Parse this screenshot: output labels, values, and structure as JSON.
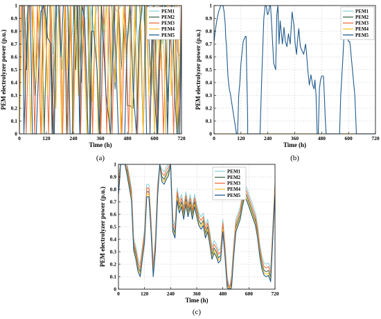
{
  "colors": {
    "PEM1": "#8fd3d6",
    "PEM2": "#41674e",
    "PEM3": "#ef6f3d",
    "PEM4": "#f5c12a",
    "PEM5": "#1f5a8c"
  },
  "chart_data": [
    {
      "id": "a",
      "type": "line",
      "panel_label": "(a)",
      "xlabel": "Time (h)",
      "ylabel": "PEM electrolyzer power (p.u.)",
      "xlim": [
        0,
        720
      ],
      "ylim": [
        0,
        1
      ],
      "xticks": [
        0,
        120,
        240,
        360,
        480,
        600,
        720
      ],
      "yticks": [
        0,
        0.1,
        0.2,
        0.3,
        0.4,
        0.5,
        0.6,
        0.7,
        0.8,
        0.9,
        1
      ],
      "grid": true,
      "legend_position": "top-right",
      "series": [
        {
          "name": "PEM1",
          "x": [
            0,
            10,
            20,
            40,
            60,
            90,
            105,
            118,
            125,
            140,
            150,
            160,
            175,
            190,
            205,
            215,
            230,
            245,
            255,
            262,
            270,
            280,
            290,
            300,
            310,
            318,
            330,
            345,
            360,
            375,
            385,
            395,
            405,
            420,
            435,
            450,
            465,
            480,
            500,
            515,
            530,
            545,
            560,
            575,
            590,
            605,
            620,
            635,
            650,
            665,
            680,
            690,
            700,
            715,
            720
          ],
          "y": [
            1,
            1,
            0.75,
            1,
            1,
            1,
            1,
            0.75,
            1,
            1,
            0.62,
            0.85,
            1,
            0.5,
            1,
            1,
            0.7,
            1,
            1,
            0.3,
            1,
            0.55,
            1,
            1,
            0.4,
            1,
            0.8,
            1,
            1,
            0.6,
            1,
            1,
            0.35,
            1,
            0.95,
            1,
            1,
            0.72,
            1,
            1,
            0.6,
            1,
            0.8,
            1,
            1,
            0.5,
            1,
            0.7,
            1,
            0.9,
            0.6,
            1,
            0.65,
            0.6,
            0.65
          ]
        },
        {
          "name": "PEM2",
          "x": [
            0,
            10,
            22,
            32,
            40,
            55,
            70,
            90,
            100,
            110,
            125,
            135,
            145,
            160,
            175,
            190,
            200,
            210,
            225,
            240,
            250,
            258,
            266,
            275,
            290,
            305,
            315,
            325,
            335,
            350,
            360,
            375,
            390,
            410,
            425,
            440,
            455,
            470,
            480,
            490,
            505,
            520,
            535,
            550,
            560,
            570,
            585,
            600,
            615,
            630,
            645,
            660,
            675,
            690,
            705,
            720
          ],
          "y": [
            1,
            1,
            1,
            0.5,
            1,
            1,
            0.3,
            1,
            1,
            0,
            1,
            1,
            0,
            1,
            1,
            1,
            1,
            0,
            1,
            1,
            0.5,
            1,
            1,
            0.4,
            1,
            1,
            0,
            1,
            1,
            1,
            0,
            1,
            1,
            1,
            0.35,
            1,
            0.5,
            1,
            0.22,
            0.22,
            0.2,
            1,
            1,
            0,
            1,
            1,
            0.3,
            1,
            0,
            1,
            1,
            0.25,
            1,
            1,
            0,
            1
          ]
        },
        {
          "name": "PEM3",
          "x": [
            0,
            8,
            20,
            30,
            45,
            55,
            68,
            80,
            95,
            105,
            115,
            130,
            140,
            152,
            165,
            180,
            192,
            205,
            215,
            228,
            240,
            252,
            260,
            272,
            285,
            300,
            312,
            325,
            338,
            350,
            362,
            375,
            388,
            400,
            412,
            425,
            440,
            455,
            470,
            485,
            500,
            512,
            525,
            538,
            550,
            565,
            580,
            595,
            610,
            625,
            640,
            655,
            670,
            685,
            700,
            712,
            720
          ],
          "y": [
            0,
            1,
            1,
            0,
            1,
            1,
            0,
            1,
            0,
            1,
            1,
            0,
            1,
            0,
            1,
            1,
            0,
            1,
            0,
            1,
            0,
            1,
            1,
            0,
            1,
            0,
            1,
            0,
            1,
            1,
            0,
            1,
            0,
            1,
            0,
            1,
            1,
            0,
            1,
            0,
            1,
            1,
            0,
            1,
            0,
            1,
            0,
            1,
            0,
            1,
            0,
            1,
            1,
            0,
            1,
            0,
            1
          ]
        },
        {
          "name": "PEM4",
          "x": [
            0,
            12,
            25,
            38,
            50,
            62,
            75,
            88,
            100,
            112,
            125,
            138,
            150,
            162,
            175,
            188,
            200,
            212,
            225,
            238,
            250,
            262,
            275,
            288,
            300,
            312,
            325,
            338,
            350,
            362,
            375,
            388,
            400,
            412,
            425,
            438,
            450,
            462,
            475,
            488,
            500,
            512,
            525,
            538,
            550,
            562,
            575,
            588,
            600,
            612,
            625,
            638,
            650,
            662,
            675,
            688,
            700,
            712,
            720
          ],
          "y": [
            0,
            1,
            0.3,
            1,
            0,
            1,
            0.4,
            1,
            0,
            1,
            0.3,
            1,
            1,
            0.2,
            1,
            0,
            1,
            0.5,
            1,
            0,
            1,
            0.3,
            1,
            0.6,
            0,
            1,
            0.25,
            1,
            0,
            1,
            0.8,
            1,
            0,
            1,
            0.4,
            1,
            0,
            1,
            0.55,
            1,
            0,
            1,
            0.2,
            1,
            0,
            1,
            0.3,
            0.7,
            0,
            1,
            0.5,
            1,
            0,
            1,
            0.3,
            1,
            0,
            1,
            1
          ]
        },
        {
          "name": "PEM5",
          "x": [
            0,
            15,
            20,
            38,
            48,
            58,
            65,
            75,
            95,
            108,
            118,
            125,
            140,
            150,
            155,
            165,
            175,
            185,
            195,
            215,
            225,
            235,
            245,
            258,
            268,
            278,
            290,
            298,
            305,
            312,
            320,
            330,
            345,
            355,
            365,
            385,
            405,
            420,
            440,
            458,
            468,
            478,
            492,
            505,
            520,
            532,
            545,
            555,
            565,
            580,
            590,
            598,
            612,
            622,
            635,
            648,
            658,
            668,
            680,
            690,
            700,
            712,
            720
          ],
          "y": [
            1,
            1,
            0,
            1,
            1,
            0,
            0,
            0,
            0.95,
            1,
            0.9,
            0.75,
            0.7,
            0,
            0,
            1,
            1,
            0.6,
            1,
            1,
            0,
            0,
            1,
            1,
            0,
            1,
            0.9,
            0.42,
            0,
            0,
            0.8,
            0.8,
            0.5,
            0,
            1,
            0.3,
            0,
            1,
            0,
            0,
            0,
            0.7,
            1,
            0.35,
            0,
            0.8,
            1,
            1,
            0,
            0,
            0.95,
            0.35,
            0,
            0.55,
            1,
            1,
            0,
            0.75,
            1,
            0.3,
            0,
            0,
            0.8
          ]
        }
      ]
    },
    {
      "id": "b",
      "type": "line",
      "panel_label": "(b)",
      "xlabel": "Time (h)",
      "ylabel": "PEM electrolyzer power (p.u.)",
      "xlim": [
        0,
        720
      ],
      "ylim": [
        0,
        1
      ],
      "xticks": [
        0,
        120,
        240,
        360,
        480,
        600,
        720
      ],
      "yticks": [
        0,
        0.1,
        0.2,
        0.3,
        0.4,
        0.5,
        0.6,
        0.7,
        0.8,
        0.9,
        1
      ],
      "grid": true,
      "legend_position": "top-right",
      "series": [
        {
          "name": "PEM1",
          "x": [
            0,
            720
          ],
          "y": [
            0,
            0
          ]
        },
        {
          "name": "PEM2",
          "x": [
            0,
            720
          ],
          "y": [
            0,
            0
          ]
        },
        {
          "name": "PEM3",
          "x": [
            0,
            720
          ],
          "y": [
            0,
            0
          ]
        },
        {
          "name": "PEM4",
          "x": [
            0,
            720
          ],
          "y": [
            0,
            0
          ]
        },
        {
          "name": "PEM5",
          "x": [
            0,
            5,
            12,
            20,
            30,
            40,
            45,
            50,
            52,
            55,
            62,
            68,
            72,
            100,
            105,
            110,
            115,
            120,
            130,
            140,
            143,
            146,
            148,
            150,
            150,
            155,
            205,
            210,
            213,
            218,
            222,
            228,
            232,
            235,
            238,
            240,
            244,
            248,
            252,
            258,
            266,
            275,
            280,
            285,
            290,
            295,
            305,
            312,
            318,
            325,
            332,
            340,
            348,
            356,
            362,
            368,
            372,
            378,
            385,
            392,
            400,
            408,
            412,
            418,
            425,
            432,
            440,
            446,
            450,
            455,
            460,
            465,
            470,
            475,
            478,
            480,
            484,
            488,
            492,
            496,
            500,
            505,
            510,
            520,
            560,
            565,
            570,
            575,
            580,
            585,
            590,
            595,
            600,
            605,
            608,
            612,
            620,
            628,
            635,
            640,
            645,
            650,
            655,
            660,
            665,
            668,
            670,
            672,
            675,
            680,
            715,
            720
          ],
          "y": [
            0.72,
            0.8,
            0.88,
            0.95,
            1,
            1,
            0.95,
            0.85,
            0.75,
            0.7,
            0.45,
            0.35,
            0.32,
            0,
            0,
            0.3,
            0.4,
            0.55,
            0.72,
            0.76,
            0.76,
            0.45,
            0.3,
            0.1,
            0,
            0,
            0,
            0.28,
            0.45,
            0.7,
            0.9,
            1,
            1,
            0.97,
            0.93,
            0.93,
            0.95,
            1,
            1,
            0.82,
            0.55,
            0.5,
            0.93,
            1,
            0.7,
            0.88,
            0.7,
            0.83,
            0.72,
            0.68,
            0.78,
            0.7,
            0.95,
            0.85,
            0.7,
            0.62,
            0.72,
            0.82,
            0.68,
            0.65,
            0.62,
            0.7,
            0.64,
            0.5,
            0.38,
            0.46,
            0.38,
            0.35,
            0.42,
            0.3,
            0,
            0,
            0.35,
            0.42,
            0.44,
            0.45,
            0.45,
            0.45,
            0.3,
            0.12,
            0,
            0,
            0,
            0,
            0,
            0.3,
            0.45,
            0.6,
            0.78,
            0.85,
            0.8,
            0.75,
            0.72,
            0.72,
            0.68,
            0.6,
            0.45,
            0.3,
            0,
            0,
            0,
            0,
            0,
            0,
            0,
            0,
            0,
            0,
            0,
            0,
            0,
            0
          ]
        }
      ]
    },
    {
      "id": "c",
      "type": "line",
      "panel_label": "(c)",
      "xlabel": "Time (h)",
      "ylabel": "PEM electrolyzer power (p.u.)",
      "xlim": [
        0,
        720
      ],
      "ylim": [
        0,
        1
      ],
      "xticks": [
        0,
        120,
        240,
        360,
        480,
        600,
        720
      ],
      "yticks": [
        0,
        0.1,
        0.2,
        0.3,
        0.4,
        0.5,
        0.6,
        0.7,
        0.8,
        0.9,
        1
      ],
      "grid": true,
      "legend_position": "top-right",
      "base": {
        "x": [
          0,
          5,
          10,
          20,
          30,
          40,
          50,
          60,
          70,
          80,
          90,
          100,
          110,
          120,
          130,
          140,
          150,
          160,
          170,
          180,
          190,
          200,
          210,
          220,
          230,
          240,
          250,
          260,
          270,
          280,
          290,
          300,
          310,
          320,
          330,
          340,
          350,
          360,
          370,
          380,
          390,
          400,
          410,
          420,
          430,
          440,
          450,
          460,
          470,
          480,
          490,
          500,
          510,
          520,
          530,
          540,
          550,
          560,
          570,
          580,
          590,
          600,
          610,
          620,
          630,
          640,
          650,
          660,
          670,
          680,
          690,
          700,
          710,
          720
        ],
        "y": [
          0.8,
          0.9,
          1,
          1,
          1,
          0.95,
          0.85,
          0.75,
          0.35,
          0.28,
          0.18,
          0.14,
          0.28,
          0.42,
          0.78,
          0.78,
          0.5,
          0.14,
          0.35,
          0.78,
          1,
          0.9,
          0.88,
          0.92,
          0.95,
          1,
          0.5,
          0.45,
          0.75,
          0.65,
          0.7,
          0.6,
          0.72,
          0.62,
          0.7,
          0.6,
          0.7,
          0.62,
          0.55,
          0.52,
          0.55,
          0.45,
          0.5,
          0.4,
          0.28,
          0.33,
          0.3,
          0.25,
          0.27,
          0.5,
          0.3,
          0.05,
          0,
          0.05,
          0.3,
          0.5,
          0.55,
          0.6,
          0.7,
          0.78,
          0.75,
          0.7,
          0.65,
          0.6,
          0.55,
          0.45,
          0.3,
          0.2,
          0.15,
          0.14,
          0.15,
          0.1,
          0.45,
          0.8
        ]
      },
      "series": [
        {
          "name": "PEM1",
          "offset": 0.06
        },
        {
          "name": "PEM2",
          "offset": 0.0
        },
        {
          "name": "PEM3",
          "offset": 0.03
        },
        {
          "name": "PEM4",
          "offset": -0.02
        },
        {
          "name": "PEM5",
          "offset": -0.04
        }
      ]
    }
  ]
}
